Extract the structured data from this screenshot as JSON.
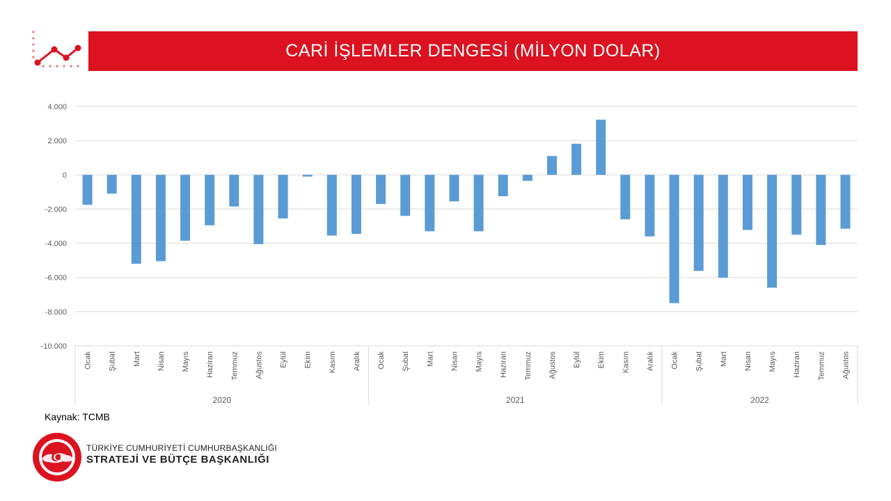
{
  "header": {
    "title": "CARİ İŞLEMLER DENGESİ (MİLYON DOLAR)",
    "accent_color": "#dc1220",
    "icon": "trend-line-icon"
  },
  "chart_data": {
    "type": "bar",
    "bar_color": "#5b9bd5",
    "ylim": [
      -10000,
      4000
    ],
    "yticks": [
      "4.000",
      "2.000",
      "0",
      "-2.000",
      "-4.000",
      "-6.000",
      "-8.000",
      "-10.000"
    ],
    "ytick_values": [
      4000,
      2000,
      0,
      -2000,
      -4000,
      -6000,
      -8000,
      -10000
    ],
    "grid": true,
    "legend": "none",
    "categories": [
      "Ocak",
      "Şubat",
      "Mart",
      "Nisan",
      "Mayıs",
      "Haziran",
      "Temmuz",
      "Ağustos",
      "Eylül",
      "Ekim",
      "Kasım",
      "Aralık",
      "Ocak",
      "Şubat",
      "Mart",
      "Nisan",
      "Mayıs",
      "Haziran",
      "Temmuz",
      "Ağustos",
      "Eylül",
      "Ekim",
      "Kasım",
      "Aralık",
      "Ocak",
      "Şubat",
      "Mart",
      "Nisan",
      "Mayıs",
      "Haziran",
      "Temmuz",
      "Ağustos"
    ],
    "values": [
      -1750,
      -1100,
      -5200,
      -5050,
      -3850,
      -2950,
      -1850,
      -4050,
      -2550,
      -100,
      -3550,
      -3450,
      -1700,
      -2400,
      -3300,
      -1550,
      -3300,
      -1250,
      -350,
      1100,
      1820,
      3230,
      -2600,
      -3600,
      -7500,
      -5620,
      -6020,
      -3220,
      -6600,
      -3500,
      -4100,
      -3150
    ],
    "groups": [
      {
        "label": "2020",
        "count": 12
      },
      {
        "label": "2021",
        "count": 12
      },
      {
        "label": "2022",
        "count": 8
      }
    ]
  },
  "footer": {
    "source": "Kaynak: TCMB",
    "org_line1": "TÜRKİYE CUMHURİYETİ CUMHURBAŞKANLIĞI",
    "org_line2": "STRATEJİ VE BÜTÇE BAŞKANLIĞI",
    "logo_icon": "sbb-seal-icon"
  }
}
